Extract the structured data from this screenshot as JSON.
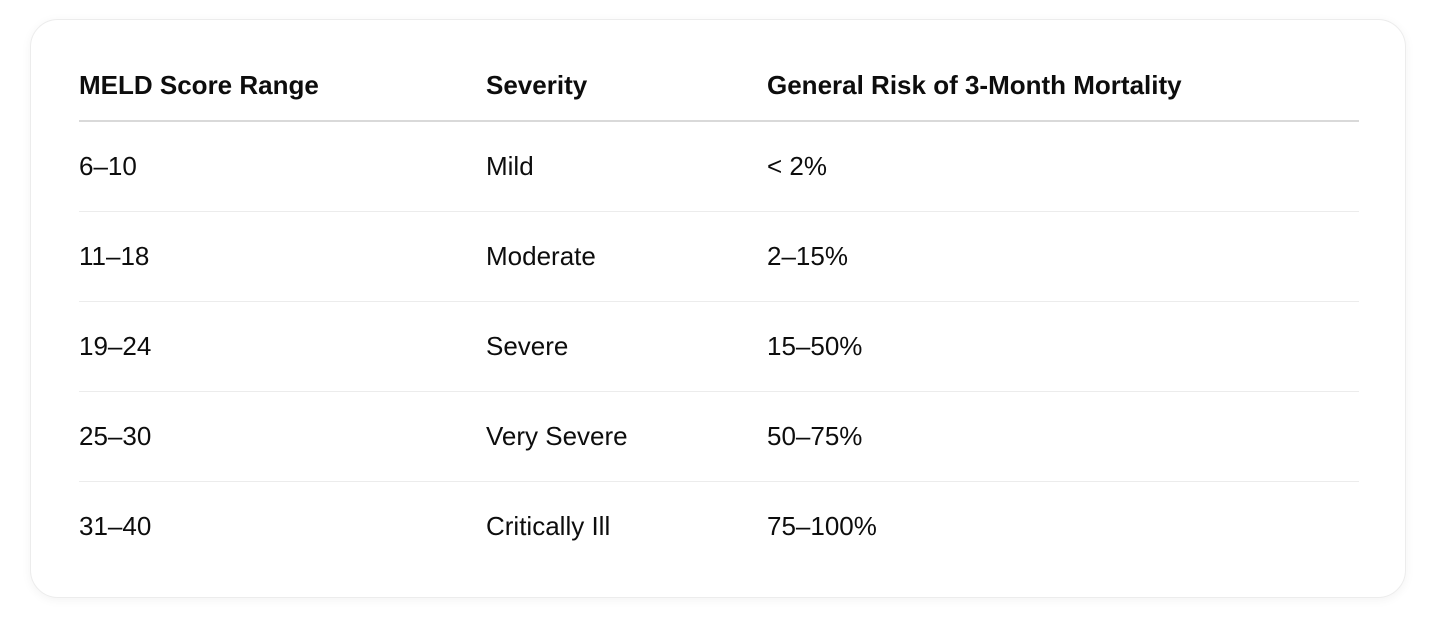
{
  "table": {
    "headers": [
      "MELD Score Range",
      "Severity",
      "General Risk of 3-Month Mortality"
    ],
    "rows": [
      [
        "6–10",
        "Mild",
        "< 2%"
      ],
      [
        "11–18",
        "Moderate",
        "2–15%"
      ],
      [
        "19–24",
        "Severe",
        "15–50%"
      ],
      [
        "25–30",
        "Very Severe",
        "50–75%"
      ],
      [
        "31–40",
        "Critically Ill",
        "75–100%"
      ]
    ]
  }
}
